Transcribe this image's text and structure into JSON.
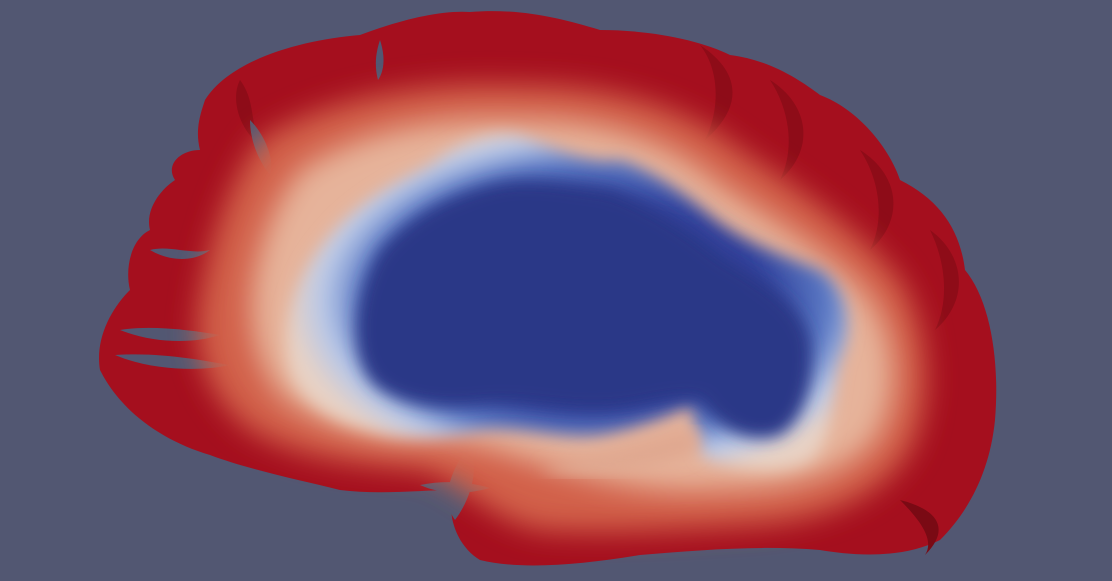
{
  "scene": {
    "background_color": "#525772",
    "object": "brain-mesh-sagittal-slice",
    "colormap": {
      "name": "cool-to-warm",
      "low_color": "#2a3a8c",
      "mid_color": "#dcdcdc",
      "high_color": "#b40a1e"
    }
  }
}
